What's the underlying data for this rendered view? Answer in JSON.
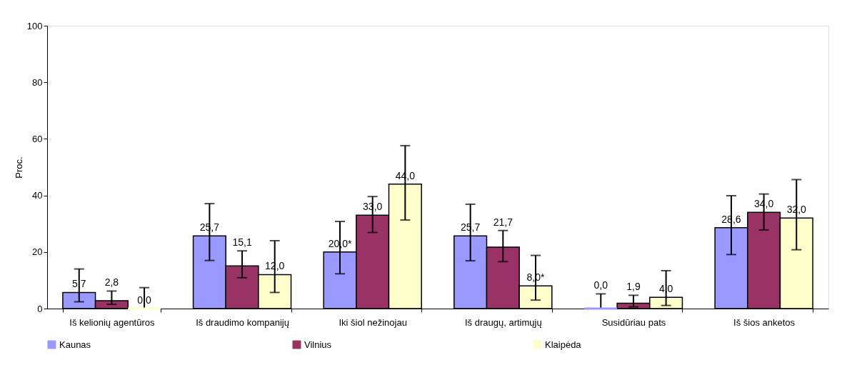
{
  "chart_data": {
    "type": "bar",
    "ylabel": "Proc.",
    "categories": [
      "Iš kelionių agentūros",
      "Iš draudimo kompanijų",
      "Iki šiol nežinojau",
      "Iš draugų, artimųjų",
      "Susidūriau pats",
      "Iš šios anketos"
    ],
    "series": [
      {
        "name": "Kaunas",
        "color": "#9999ff",
        "values": [
          5.7,
          25.7,
          20.0,
          25.7,
          0.0,
          28.6
        ],
        "value_labels": [
          "5,7",
          "25,7",
          "20,0*",
          "25,7",
          "0,0",
          "28,6"
        ],
        "errors": [
          [
            2.4,
            14.0
          ],
          [
            17.0,
            37.1
          ],
          [
            12.3,
            30.8
          ],
          [
            16.9,
            36.9
          ],
          [
            0,
            5.2
          ],
          [
            19.1,
            39.9
          ]
        ]
      },
      {
        "name": "Vilnius",
        "color": "#993366",
        "values": [
          2.8,
          15.1,
          33.0,
          21.7,
          1.9,
          34.0
        ],
        "value_labels": [
          "2,8",
          "15,1",
          "33,0",
          "21,7",
          "1,9",
          "34,0"
        ],
        "errors": [
          [
            1.5,
            6.2
          ],
          [
            10.9,
            20.4
          ],
          [
            26.9,
            39.6
          ],
          [
            16.6,
            27.6
          ],
          [
            0.6,
            4.7
          ],
          [
            27.8,
            40.5
          ]
        ]
      },
      {
        "name": "Klaipėda",
        "color": "#ffffcc",
        "values": [
          0.0,
          12.0,
          44.0,
          8.0,
          4.0,
          32.0
        ],
        "value_labels": [
          "0,0",
          "12,0",
          "44,0",
          "8,0*",
          "4,0",
          "32,0"
        ],
        "errors": [
          [
            0,
            7.4
          ],
          [
            5.7,
            24.0
          ],
          [
            31.3,
            57.6
          ],
          [
            3.0,
            18.8
          ],
          [
            1.1,
            13.4
          ],
          [
            20.8,
            45.6
          ]
        ]
      }
    ],
    "ylim": [
      0,
      100
    ],
    "yticks": [
      0,
      20,
      40,
      60,
      80,
      100
    ],
    "grid": false,
    "legend": "bottom"
  }
}
